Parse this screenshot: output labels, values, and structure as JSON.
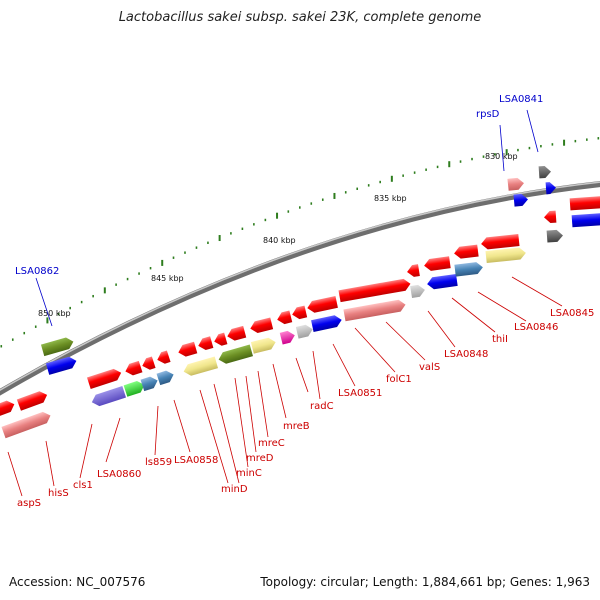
{
  "title": "Lactobacillus sakei subsp. sakei 23K, complete genome",
  "footer": {
    "accession": "Accession: NC_007576",
    "summary": "Topology: circular; Length: 1,884,661 bp; Genes: 1,963"
  },
  "colors": {
    "backbone": "#8a8a8a",
    "forward_gene": "#ff0000",
    "reverse_gene": "#e07070",
    "label_red": "#cc0000",
    "label_blue": "#0000cc",
    "tick": "#2e7d1e"
  },
  "scale_labels": [
    "830 kbp",
    "835 kbp",
    "840 kbp",
    "845 kbp",
    "850 kbp"
  ],
  "gene_labels": [
    "LSA0845",
    "LSA0846",
    "thiI",
    "LSA0848",
    "valS",
    "folC1",
    "LSA0851",
    "radC",
    "mreB",
    "mreC",
    "mreD",
    "minC",
    "minD",
    "LSA0858",
    "ls859",
    "LSA0860",
    "cls1",
    "hisS",
    "aspS"
  ],
  "blue_labels": [
    "LSA0841",
    "rpsD",
    "LSA0862"
  ]
}
